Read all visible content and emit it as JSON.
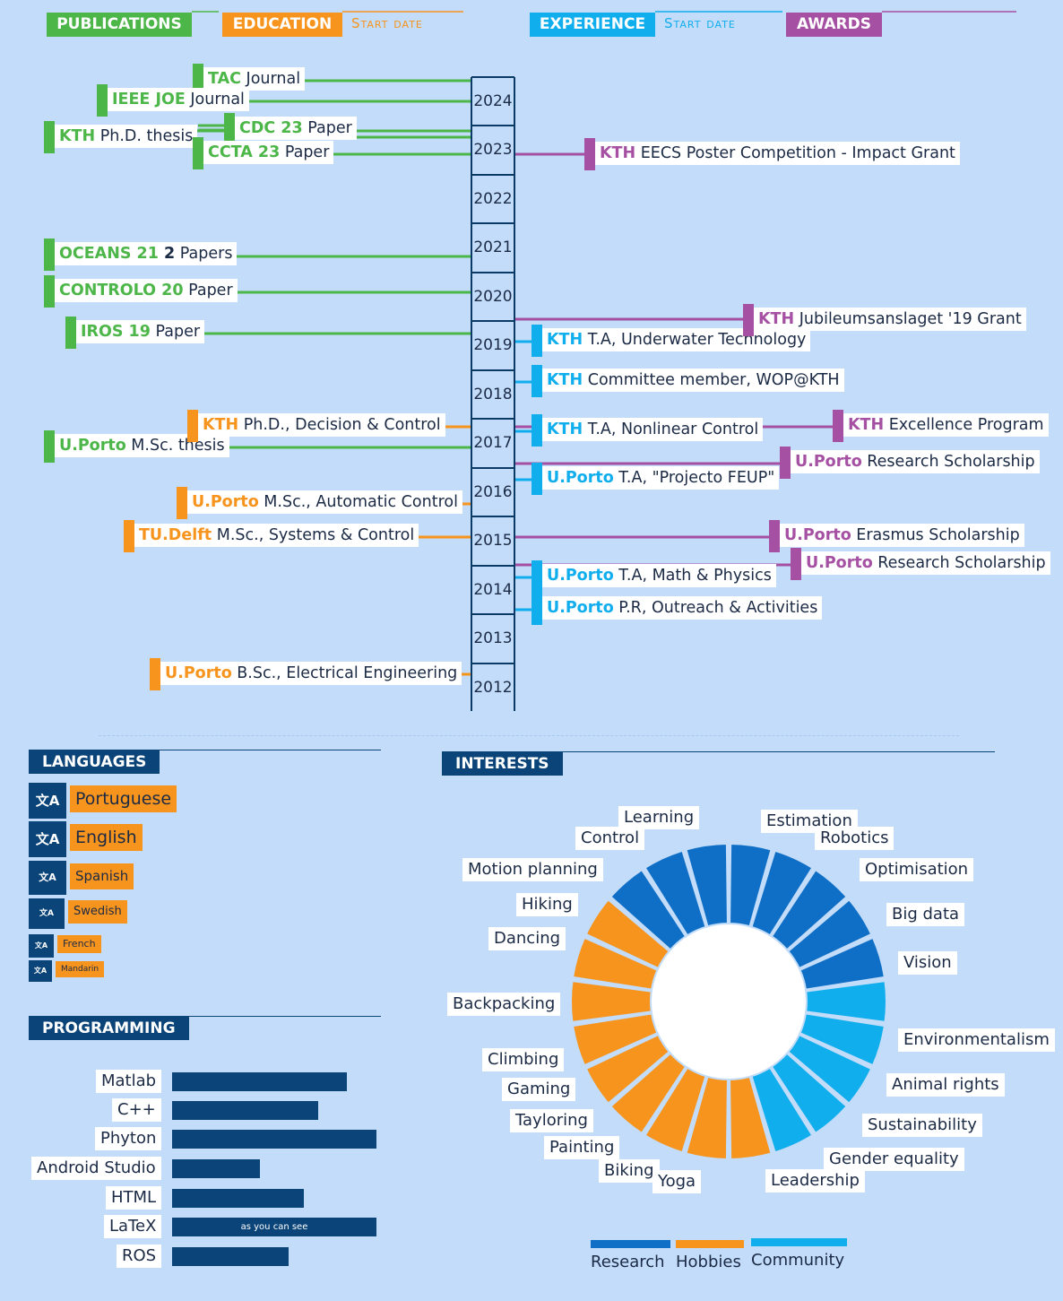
{
  "colors": {
    "publications": "#4cb648",
    "education": "#f7941d",
    "experience": "#11aeee",
    "awards": "#a550a3",
    "dark": "#0a4478",
    "research": "#0f6fc6",
    "hobbies": "#f7941d",
    "community": "#11aeee"
  },
  "legend_top": {
    "publications": "PUBLICATIONS",
    "education": "EDUCATION",
    "education_sub": "Start date",
    "experience": "EXPERIENCE",
    "experience_sub": "Start date",
    "awards": "AWARDS"
  },
  "years": [
    "2024",
    "2023",
    "2022",
    "2021",
    "2020",
    "2019",
    "2018",
    "2017",
    "2016",
    "2015",
    "2014",
    "2013",
    "2012"
  ],
  "publications": [
    {
      "org": "TAC",
      "rest": " Journal"
    },
    {
      "org": "IEEE JOE",
      "rest": " Journal"
    },
    {
      "org": "CDC 23",
      "rest": " Paper"
    },
    {
      "org": "KTH",
      "rest": " Ph.D. thesis"
    },
    {
      "org": "CCTA 23",
      "rest": " Paper"
    },
    {
      "org": "OCEANS 21",
      "rest_bold": " 2",
      "rest": " Papers"
    },
    {
      "org": "CONTROLO 20",
      "rest": " Paper"
    },
    {
      "org": "IROS 19",
      "rest": " Paper"
    },
    {
      "org": "U.Porto",
      "rest": " M.Sc. thesis"
    }
  ],
  "education": [
    {
      "org": "KTH",
      "rest": " Ph.D., Decision & Control"
    },
    {
      "org": "U.Porto",
      "rest": " M.Sc., Automatic Control"
    },
    {
      "org": "TU.Delft",
      "rest": " M.Sc., Systems & Control"
    },
    {
      "org": "U.Porto",
      "rest": " B.Sc., Electrical Engineering"
    }
  ],
  "experience": [
    {
      "org": "KTH",
      "rest": " T.A, Underwater Technology"
    },
    {
      "org": "KTH",
      "rest": " Committee member, WOP@KTH"
    },
    {
      "org": "KTH",
      "rest": " T.A, Nonlinear Control"
    },
    {
      "org": "U.Porto",
      "rest": " T.A, \"Projecto FEUP\""
    },
    {
      "org": "U.Porto",
      "rest": " T.A, Math & Physics"
    },
    {
      "org": "U.Porto",
      "rest": " P.R, Outreach & Activities"
    }
  ],
  "awards": [
    {
      "org": "KTH",
      "rest": " EECS Poster Competition - Impact Grant"
    },
    {
      "org": "KTH",
      "rest": " Jubileumsanslaget '19 Grant"
    },
    {
      "org": "KTH",
      "rest": " Excellence Program"
    },
    {
      "org": "U.Porto",
      "rest": " Research Scholarship"
    },
    {
      "org": "U.Porto",
      "rest": " Erasmus Scholarship"
    },
    {
      "org": "U.Porto",
      "rest": " Research Scholarship"
    }
  ],
  "languages": {
    "title": "LANGUAGES",
    "items": [
      {
        "name": "Portuguese",
        "icon": "translate-icon"
      },
      {
        "name": "English",
        "icon": "translate-icon"
      },
      {
        "name": "Spanish",
        "icon": "translate-icon"
      },
      {
        "name": "Swedish",
        "icon": "translate-icon"
      },
      {
        "name": "French",
        "icon": "translate-icon"
      },
      {
        "name": "Mandarin",
        "icon": "translate-icon"
      }
    ]
  },
  "programming": {
    "title": "PROGRAMMING",
    "items": [
      {
        "name": "Matlab",
        "level": 0.855,
        "note": ""
      },
      {
        "name": "C++",
        "level": 0.715,
        "note": ""
      },
      {
        "name": "Phyton",
        "level": 1.0,
        "note": ""
      },
      {
        "name": "Android Studio",
        "level": 0.43,
        "note": ""
      },
      {
        "name": "HTML",
        "level": 0.645,
        "note": ""
      },
      {
        "name": "LaTeX",
        "level": 1.0,
        "note": "as you can see"
      },
      {
        "name": "ROS",
        "level": 0.57,
        "note": ""
      }
    ]
  },
  "chart_data": {
    "type": "pie",
    "title": "INTERESTS",
    "series": [
      {
        "name": "Research",
        "labels": [
          "Estimation",
          "Robotics",
          "Optimisation",
          "Big data",
          "Vision",
          "Learning",
          "Control",
          "Motion planning"
        ]
      },
      {
        "name": "Hobbies",
        "labels": [
          "Hiking",
          "Dancing",
          "Backpacking",
          "Climbing",
          "Gaming",
          "Tayloring",
          "Painting",
          "Biking",
          "Yoga"
        ]
      },
      {
        "name": "Community",
        "labels": [
          "Environmentalism",
          "Animal rights",
          "Sustainability",
          "Gender equality",
          "Leadership"
        ]
      }
    ],
    "legend": [
      "Research",
      "Hobbies",
      "Community"
    ]
  }
}
